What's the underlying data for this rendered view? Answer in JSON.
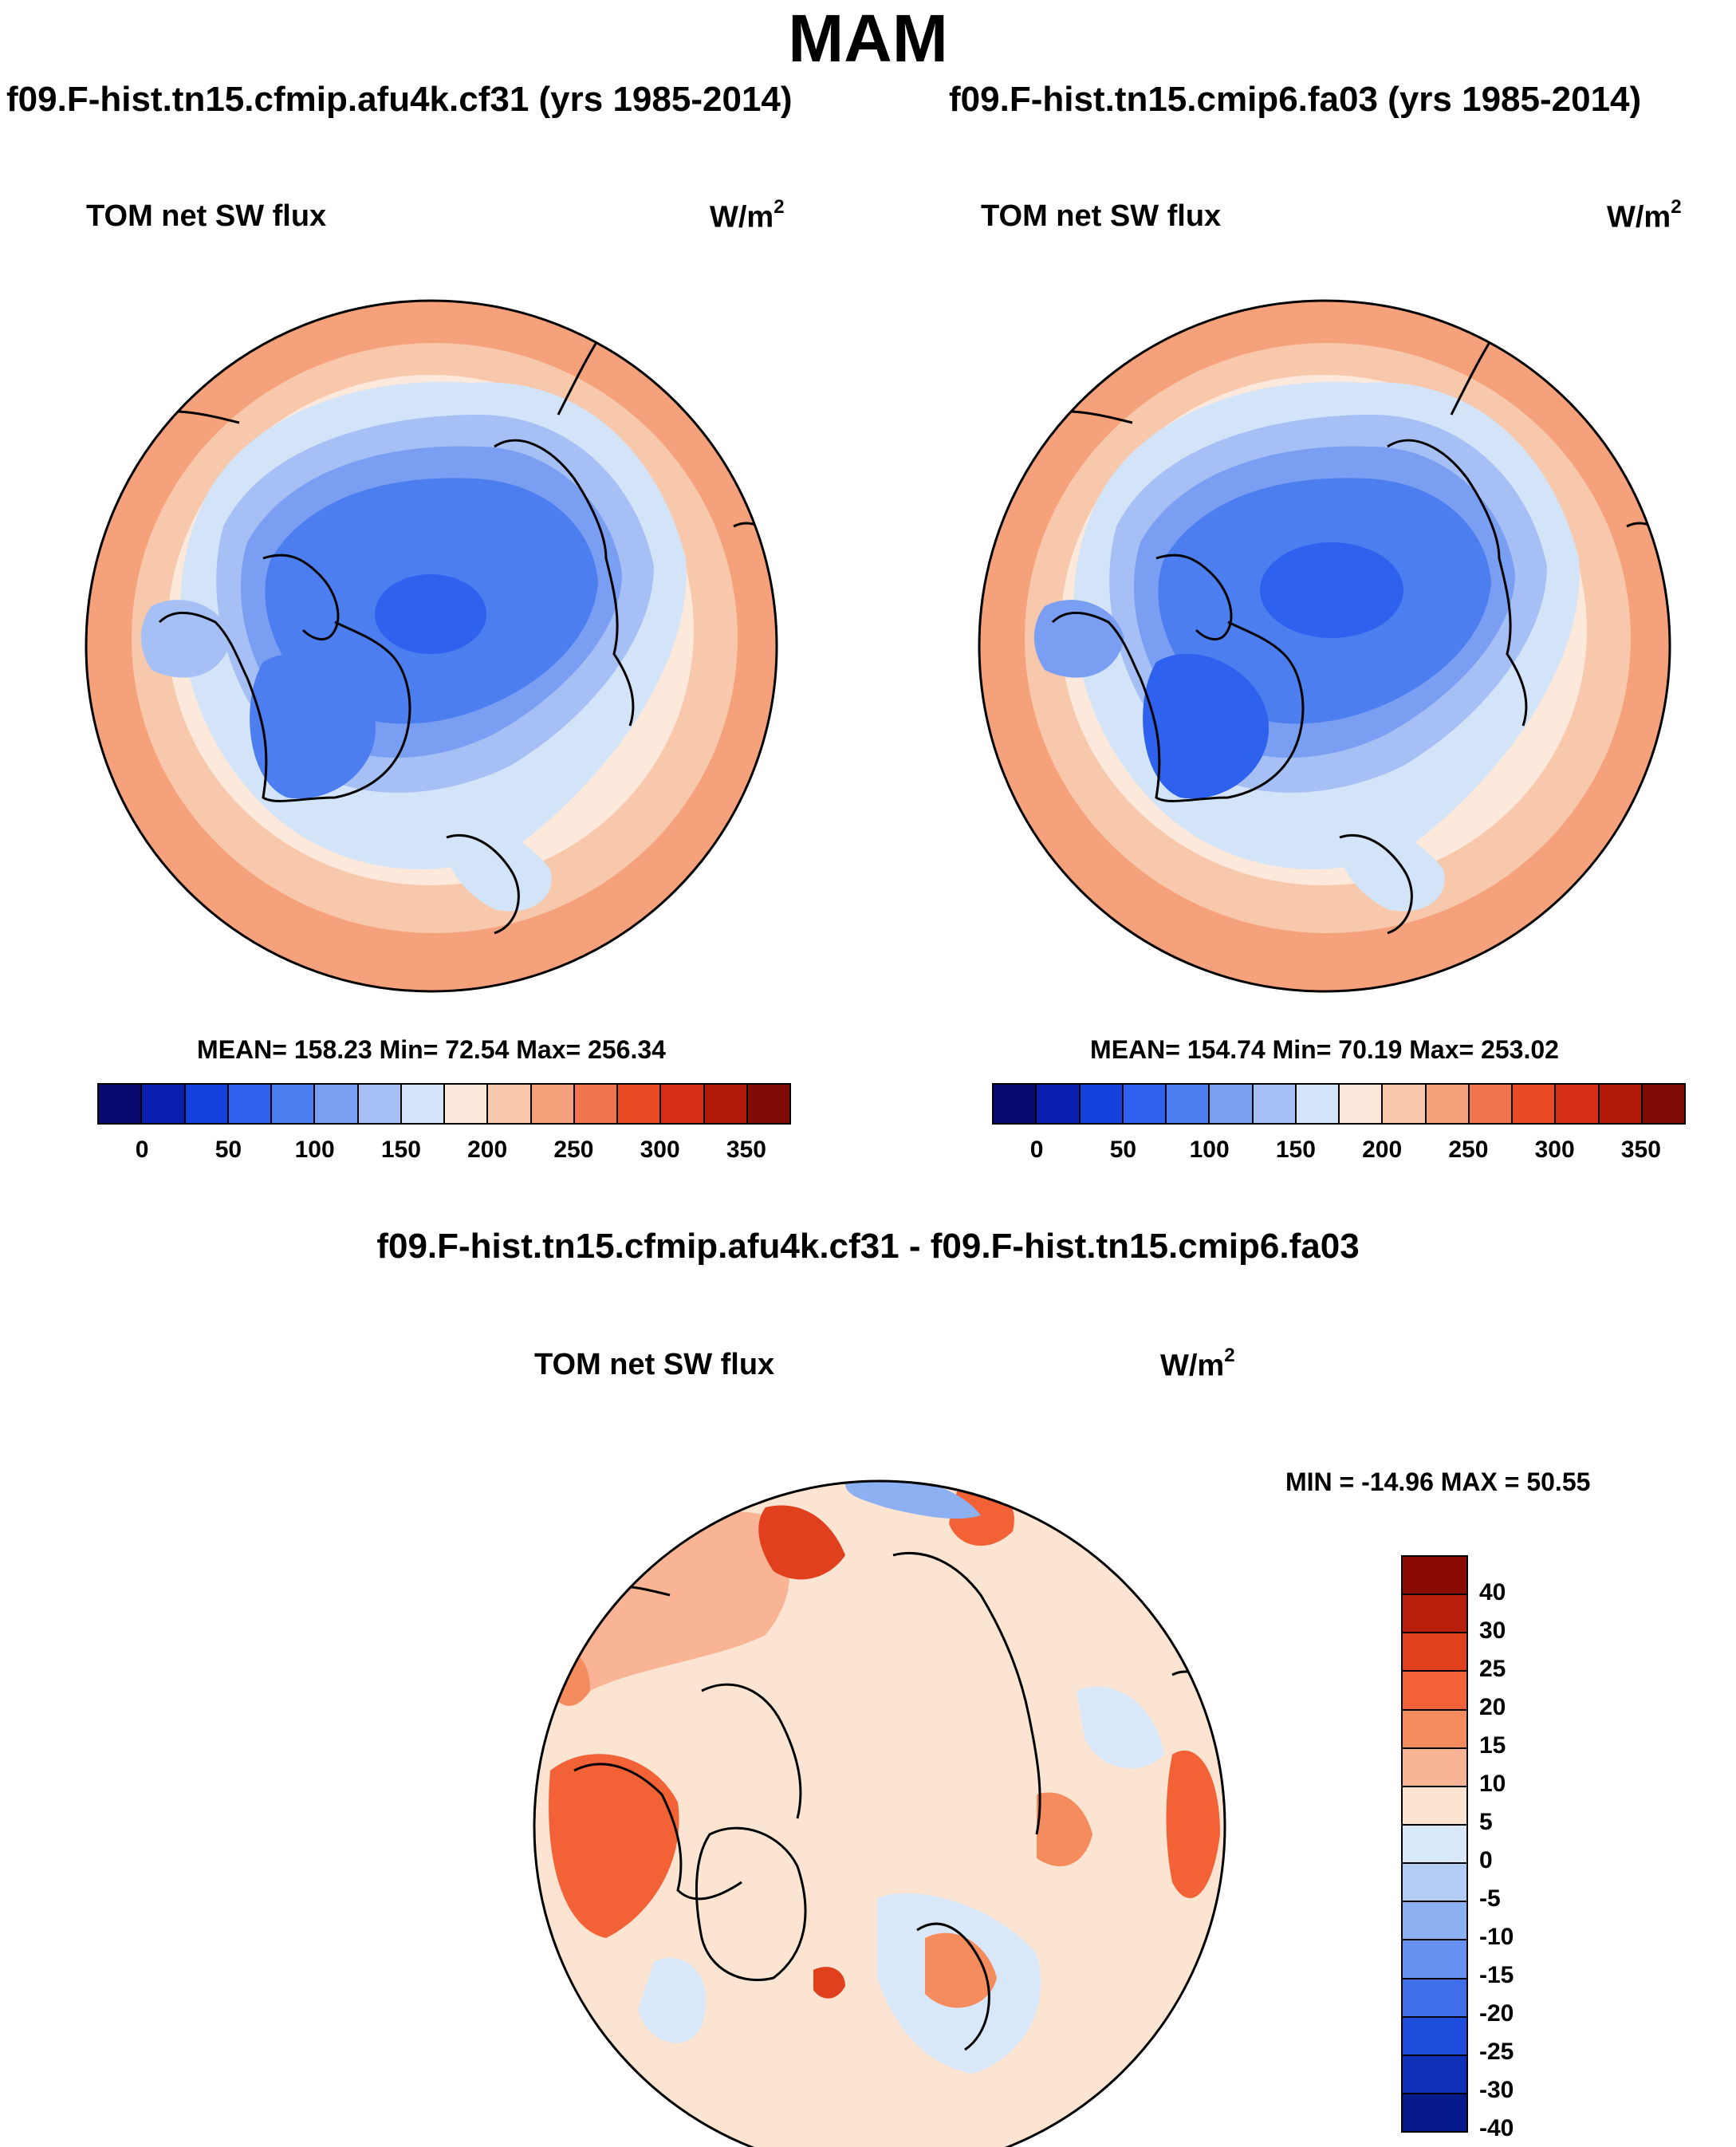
{
  "figure": {
    "title": "MAM"
  },
  "panels": [
    {
      "case": "f09.F-hist.tn15.cfmip.afu4k.cf31 (yrs 1985-2014)",
      "variable": "TOM net SW flux",
      "units_base": "W/m",
      "units_exp": "2",
      "stats_text": "MEAN= 158.23  Min=  72.54  Max= 256.34"
    },
    {
      "case": "f09.F-hist.tn15.cmip6.fa03 (yrs 1985-2014)",
      "variable": "TOM net SW flux",
      "units_base": "W/m",
      "units_exp": "2",
      "stats_text": "MEAN= 154.74  Min=  70.19  Max= 253.02"
    }
  ],
  "diff_panel": {
    "title": "f09.F-hist.tn15.cfmip.afu4k.cf31 - f09.F-hist.tn15.cmip6.fa03",
    "variable": "TOM net SW flux",
    "units_base": "W/m",
    "units_exp": "2",
    "minmax_text": "MIN = -14.96 MAX =  50.55"
  },
  "colorbar_fields": {
    "colors": [
      "#08086e",
      "#0a1fb0",
      "#1440dc",
      "#2e62ee",
      "#4d7ef0",
      "#7a9ff2",
      "#a6c0f5",
      "#d4e4f8",
      "#fce9dc",
      "#f8c8ac",
      "#f5a27c",
      "#f0754c",
      "#e84b24",
      "#d42e14",
      "#b01a0a",
      "#800a04"
    ],
    "tick_labels": [
      "0",
      "50",
      "100",
      "150",
      "200",
      "250",
      "300",
      "350"
    ]
  },
  "colorbar_diff": {
    "colors_top_to_bottom": [
      "#8a0a04",
      "#b81e0c",
      "#e0401e",
      "#f26236",
      "#f58c5e",
      "#f8b494",
      "#fce4d2",
      "#d9e8f8",
      "#b4cdf5",
      "#8cb0f2",
      "#6690ef",
      "#3f6ee8",
      "#1e4ddc",
      "#1030b8",
      "#061a8c"
    ],
    "tick_labels_top_to_bottom": [
      "40",
      "30",
      "25",
      "20",
      "15",
      "10",
      "5",
      "0",
      "-5",
      "-10",
      "-15",
      "-20",
      "-25",
      "-30",
      "-40"
    ]
  }
}
